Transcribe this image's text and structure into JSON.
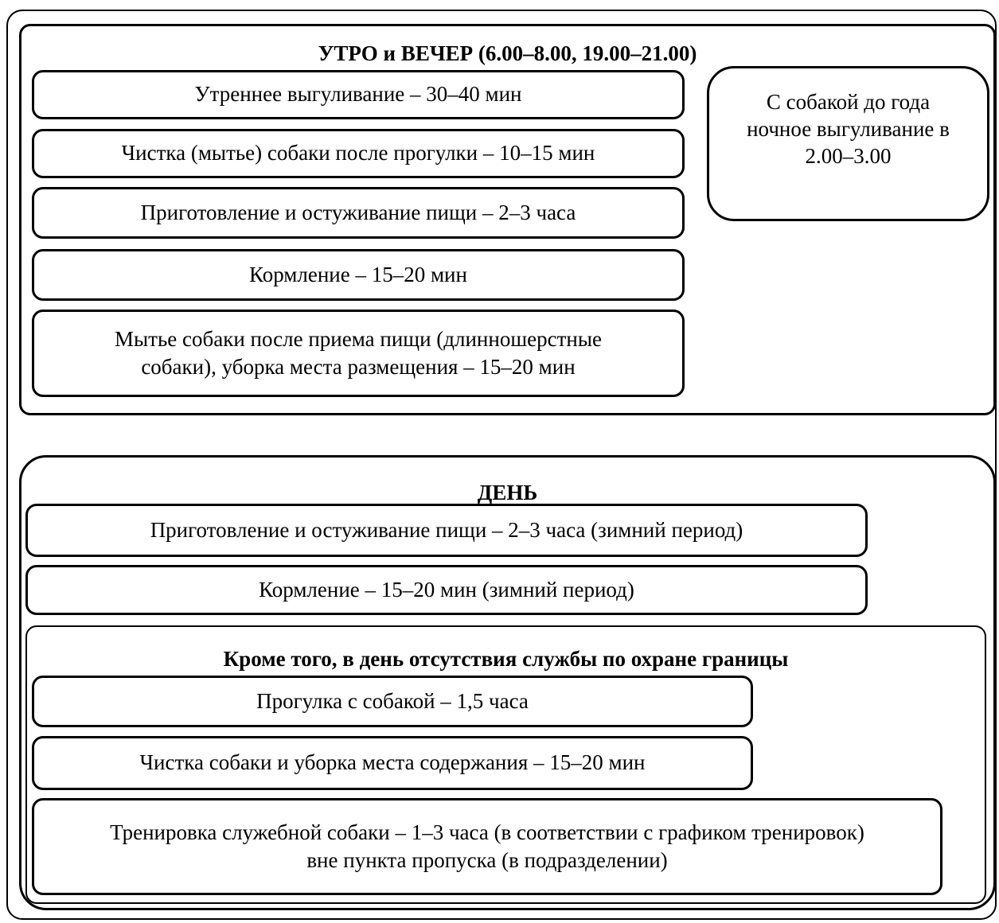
{
  "section_morning": {
    "title": "УТРО и ВЕЧЕР (6.00–8.00, 19.00–21.00)",
    "items": [
      "Утреннее выгуливание – 30–40 мин",
      "Чистка (мытье) собаки после прогулки – 10–15 мин",
      "Приготовление и остуживание пищи – 2–3 часа",
      "Кормление – 15–20 мин",
      "Мытье собаки после приема пищи (длинношерстные собаки), уборка места размещения – 15–20 мин"
    ],
    "side_note": "С собакой до года ночное выгуливание в 2.00–3.00"
  },
  "section_day": {
    "title": "ДЕНЬ",
    "items": [
      "Приготовление и остуживание пищи – 2–3 часа (зимний период)",
      "Кормление – 15–20 мин (зимний период)"
    ],
    "sub": {
      "title": "Кроме того, в день отсутствия службы по охране границы",
      "items": [
        "Прогулка с собакой – 1,5 часа",
        "Чистка собаки и уборка места содержания – 15–20 мин",
        "Тренировка служебной собаки – 1–3 часа (в соответствии с графиком тренировок) вне пункта пропуска (в подразделении)"
      ]
    }
  }
}
